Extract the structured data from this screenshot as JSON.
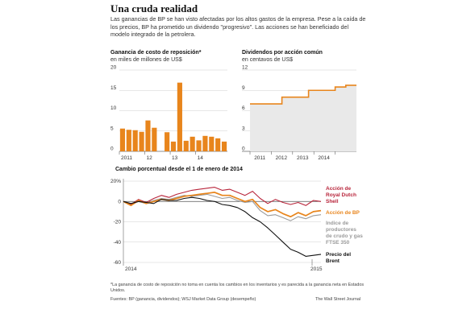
{
  "header": {
    "title": "Una cruda realidad",
    "intro": "Las ganancias de BP se han visto afectadas por los altos gastos de la empresa. Pese a la caída de los precios, BP ha prometido un dividendo \"progresivo\". Las acciones se han beneficiado del modelo integrado de la petrolera."
  },
  "colors": {
    "orange": "#e8851c",
    "red": "#b8243a",
    "gray": "#9a9a9a",
    "black": "#111111",
    "shade": "#e9e9e9"
  },
  "chart_data": [
    {
      "type": "bar",
      "title": "Ganancia de costo de reposición*",
      "subtitle": "en miles de millones de US$",
      "ylim": [
        0,
        20
      ],
      "yticks": [
        0,
        5,
        10,
        15,
        20
      ],
      "xtick_labels": [
        "2011",
        "12",
        "13",
        "14"
      ],
      "values": [
        5.6,
        5.3,
        5.2,
        4.8,
        7.6,
        5.8,
        0.0,
        4.7,
        2.4,
        16.9,
        2.6,
        3.6,
        2.7,
        3.8,
        3.6,
        3.2,
        2.4
      ]
    },
    {
      "type": "area",
      "title": "Dividendos por acción común",
      "subtitle": "en centavos de US$",
      "ylim": [
        0,
        12
      ],
      "yticks": [
        0,
        3,
        6,
        9,
        12
      ],
      "xtick_labels": [
        "2011",
        "2012",
        "2013",
        "2014"
      ],
      "values": [
        7.0,
        7.0,
        7.0,
        7.0,
        7.0,
        7.0,
        8.0,
        8.0,
        8.0,
        8.0,
        8.0,
        9.0,
        9.0,
        9.0,
        9.0,
        9.0,
        9.5,
        9.5,
        9.75,
        9.75
      ]
    },
    {
      "type": "line",
      "title": "Cambio porcentual desde el 1 de enero de  2014",
      "ylim": [
        -60,
        20
      ],
      "yticks": [
        "20%",
        "0",
        "-20",
        "-40",
        "-60"
      ],
      "xtick_labels": [
        "2014",
        "2015"
      ],
      "series": [
        {
          "name": "Acción de Royal Dutch Shell",
          "color": "#b8243a",
          "values": [
            0,
            -3,
            2,
            -1,
            3,
            6,
            4,
            7,
            9,
            11,
            12,
            13,
            14,
            11,
            12,
            9,
            6,
            10,
            3,
            -2,
            2,
            -1,
            -3,
            -1,
            -4,
            1,
            0
          ]
        },
        {
          "name": "Acción de BP",
          "color": "#e8851c",
          "values": [
            0,
            -4,
            1,
            -2,
            0,
            2,
            1,
            3,
            5,
            6,
            7,
            8,
            9,
            6,
            6,
            3,
            0,
            2,
            -6,
            -10,
            -8,
            -12,
            -15,
            -11,
            -14,
            -10,
            -9
          ]
        },
        {
          "name": "Indice de productores de crudo y gas FTSE 350",
          "color": "#9a9a9a",
          "values": [
            0,
            -3,
            0,
            -2,
            1,
            3,
            2,
            4,
            6,
            5,
            6,
            7,
            5,
            3,
            4,
            1,
            -1,
            0,
            -9,
            -14,
            -13,
            -16,
            -19,
            -15,
            -17,
            -14,
            -13
          ]
        },
        {
          "name": "Precio del Brent",
          "color": "#111111",
          "values": [
            0,
            -2,
            0,
            -1,
            -2,
            2,
            1,
            1,
            3,
            4,
            3,
            1,
            0,
            -3,
            -4,
            -6,
            -10,
            -16,
            -20,
            -26,
            -33,
            -40,
            -47,
            -50,
            -54,
            -53,
            -52
          ]
        }
      ]
    }
  ],
  "footnote": "*La ganancia de costo de reposición no toma en cuenta los cambios en los  inventarios y es parecida a la ganancia neta en Estados Unidos.",
  "source": "Fuentes: BP (ganancia, dividendos); WSJ Market Data Group (desempeño)",
  "credit": "The Wall Street Journal"
}
